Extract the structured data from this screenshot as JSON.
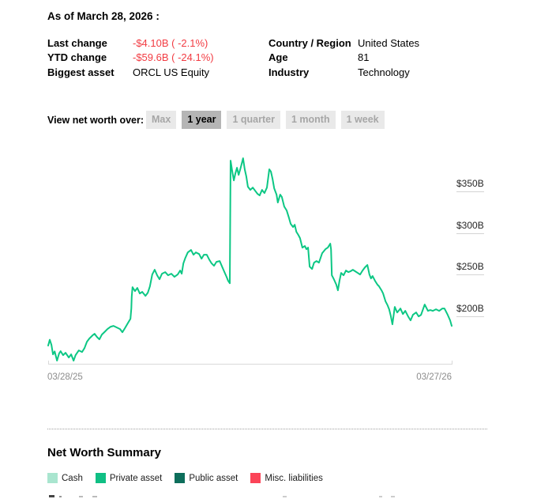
{
  "header": {
    "as_of": "As of March 28, 2026 :"
  },
  "stats": {
    "left": [
      {
        "label": "Last change",
        "value": "-$4.10B ( -2.1%)",
        "negative": true
      },
      {
        "label": "YTD change",
        "value": "-$59.6B ( -24.1%)",
        "negative": true
      },
      {
        "label": "Biggest asset",
        "value": "ORCL US Equity",
        "negative": false
      }
    ],
    "right": [
      {
        "label": "Country / Region",
        "value": "United States"
      },
      {
        "label": "Age",
        "value": "81"
      },
      {
        "label": "Industry",
        "value": "Technology"
      }
    ]
  },
  "controls": {
    "label": "View net worth over:",
    "buttons": [
      {
        "label": "Max",
        "selected": false
      },
      {
        "label": "1 year",
        "selected": true
      },
      {
        "label": "1 quarter",
        "selected": false
      },
      {
        "label": "1 month",
        "selected": false
      },
      {
        "label": "1 week",
        "selected": false
      }
    ]
  },
  "chart_data": {
    "type": "line",
    "title": "Net worth over 1 year",
    "line_color": "#0cc784",
    "y_unit": "billions USD",
    "ylim": [
      145,
      395
    ],
    "grid": false,
    "y_ticks": [
      {
        "value": 350,
        "label": "$350B"
      },
      {
        "value": 300,
        "label": "$300B"
      },
      {
        "value": 250,
        "label": "$250B"
      },
      {
        "value": 200,
        "label": "$200B"
      }
    ],
    "x_axis": {
      "start_label": "03/28/25",
      "end_label": "03/27/26"
    },
    "points": [
      [
        0.0,
        165
      ],
      [
        0.004,
        172
      ],
      [
        0.008,
        166
      ],
      [
        0.012,
        154.5
      ],
      [
        0.016,
        158
      ],
      [
        0.022,
        147
      ],
      [
        0.027,
        155.4
      ],
      [
        0.031,
        158.3
      ],
      [
        0.037,
        153.5
      ],
      [
        0.043,
        156.4
      ],
      [
        0.051,
        150.7
      ],
      [
        0.057,
        154.5
      ],
      [
        0.063,
        146.9
      ],
      [
        0.068,
        153.5
      ],
      [
        0.076,
        159.2
      ],
      [
        0.084,
        157.3
      ],
      [
        0.09,
        162
      ],
      [
        0.096,
        169.6
      ],
      [
        0.102,
        173.4
      ],
      [
        0.11,
        177.2
      ],
      [
        0.115,
        179.1
      ],
      [
        0.121,
        175.3
      ],
      [
        0.127,
        172.5
      ],
      [
        0.133,
        178.2
      ],
      [
        0.141,
        182
      ],
      [
        0.147,
        184.8
      ],
      [
        0.155,
        187.7
      ],
      [
        0.162,
        188.6
      ],
      [
        0.17,
        186.7
      ],
      [
        0.178,
        184.8
      ],
      [
        0.184,
        181
      ],
      [
        0.19,
        185.8
      ],
      [
        0.198,
        192.4
      ],
      [
        0.204,
        197.2
      ],
      [
        0.206,
        209.5
      ],
      [
        0.207,
        223.7
      ],
      [
        0.209,
        235.1
      ],
      [
        0.215,
        230.4
      ],
      [
        0.221,
        234.2
      ],
      [
        0.227,
        227.5
      ],
      [
        0.233,
        229.4
      ],
      [
        0.241,
        224.7
      ],
      [
        0.247,
        228.5
      ],
      [
        0.252,
        236
      ],
      [
        0.258,
        250.3
      ],
      [
        0.264,
        256
      ],
      [
        0.27,
        249.3
      ],
      [
        0.276,
        244.6
      ],
      [
        0.282,
        251.2
      ],
      [
        0.29,
        253.1
      ],
      [
        0.297,
        249.3
      ],
      [
        0.305,
        251.2
      ],
      [
        0.313,
        247.4
      ],
      [
        0.321,
        250.3
      ],
      [
        0.327,
        255
      ],
      [
        0.331,
        251.2
      ],
      [
        0.335,
        263.6
      ],
      [
        0.34,
        270.2
      ],
      [
        0.346,
        276.8
      ],
      [
        0.354,
        279.7
      ],
      [
        0.36,
        274
      ],
      [
        0.366,
        276.8
      ],
      [
        0.374,
        274.9
      ],
      [
        0.38,
        269.3
      ],
      [
        0.386,
        274
      ],
      [
        0.393,
        274
      ],
      [
        0.399,
        268.3
      ],
      [
        0.405,
        263.6
      ],
      [
        0.411,
        260.7
      ],
      [
        0.417,
        265.5
      ],
      [
        0.425,
        266.4
      ],
      [
        0.431,
        259.8
      ],
      [
        0.436,
        254.1
      ],
      [
        0.442,
        247.4
      ],
      [
        0.446,
        242.7
      ],
      [
        0.45,
        239.8
      ],
      [
        0.452,
        386.9
      ],
      [
        0.456,
        374.6
      ],
      [
        0.46,
        363.2
      ],
      [
        0.464,
        371.7
      ],
      [
        0.468,
        378.4
      ],
      [
        0.472,
        369.8
      ],
      [
        0.476,
        376.5
      ],
      [
        0.479,
        382.2
      ],
      [
        0.483,
        389.8
      ],
      [
        0.487,
        376.5
      ],
      [
        0.491,
        367.9
      ],
      [
        0.495,
        355.6
      ],
      [
        0.501,
        351.8
      ],
      [
        0.507,
        354.6
      ],
      [
        0.513,
        350.8
      ],
      [
        0.519,
        347
      ],
      [
        0.524,
        345.2
      ],
      [
        0.53,
        351.8
      ],
      [
        0.536,
        348
      ],
      [
        0.542,
        354.6
      ],
      [
        0.548,
        376.5
      ],
      [
        0.552,
        373.6
      ],
      [
        0.556,
        365.1
      ],
      [
        0.56,
        353.7
      ],
      [
        0.566,
        346.1
      ],
      [
        0.569,
        336.6
      ],
      [
        0.575,
        346.1
      ],
      [
        0.579,
        343.3
      ],
      [
        0.585,
        331.9
      ],
      [
        0.591,
        327.1
      ],
      [
        0.597,
        317.6
      ],
      [
        0.601,
        311
      ],
      [
        0.607,
        307.2
      ],
      [
        0.611,
        310
      ],
      [
        0.615,
        301.5
      ],
      [
        0.62,
        297.7
      ],
      [
        0.624,
        293.9
      ],
      [
        0.63,
        282.5
      ],
      [
        0.636,
        284.4
      ],
      [
        0.64,
        280.6
      ],
      [
        0.644,
        282.5
      ],
      [
        0.648,
        259.8
      ],
      [
        0.654,
        256.9
      ],
      [
        0.659,
        264.5
      ],
      [
        0.665,
        266.4
      ],
      [
        0.671,
        264.5
      ],
      [
        0.679,
        275.9
      ],
      [
        0.687,
        280.6
      ],
      [
        0.693,
        282.5
      ],
      [
        0.699,
        287.3
      ],
      [
        0.701,
        280.6
      ],
      [
        0.703,
        249.3
      ],
      [
        0.708,
        244.6
      ],
      [
        0.714,
        238
      ],
      [
        0.718,
        231.3
      ],
      [
        0.722,
        242.7
      ],
      [
        0.726,
        252.2
      ],
      [
        0.732,
        249.3
      ],
      [
        0.738,
        255
      ],
      [
        0.744,
        253.1
      ],
      [
        0.749,
        254.1
      ],
      [
        0.755,
        256
      ],
      [
        0.761,
        254.1
      ],
      [
        0.767,
        252.2
      ],
      [
        0.773,
        250.3
      ],
      [
        0.779,
        255
      ],
      [
        0.785,
        258.8
      ],
      [
        0.791,
        261.7
      ],
      [
        0.796,
        250.3
      ],
      [
        0.8,
        245.5
      ],
      [
        0.804,
        248.4
      ],
      [
        0.81,
        242.7
      ],
      [
        0.816,
        238
      ],
      [
        0.82,
        236.1
      ],
      [
        0.826,
        231.3
      ],
      [
        0.83,
        227.5
      ],
      [
        0.836,
        218
      ],
      [
        0.841,
        213.3
      ],
      [
        0.845,
        208.5
      ],
      [
        0.849,
        200.9
      ],
      [
        0.853,
        190.5
      ],
      [
        0.859,
        211.4
      ],
      [
        0.865,
        204.7
      ],
      [
        0.873,
        209.5
      ],
      [
        0.879,
        202.8
      ],
      [
        0.885,
        206.6
      ],
      [
        0.892,
        200
      ],
      [
        0.898,
        195.3
      ],
      [
        0.904,
        201.9
      ],
      [
        0.912,
        204.7
      ],
      [
        0.918,
        200
      ],
      [
        0.924,
        201.9
      ],
      [
        0.933,
        214.2
      ],
      [
        0.941,
        206.6
      ],
      [
        0.947,
        207.6
      ],
      [
        0.953,
        206.6
      ],
      [
        0.961,
        208.5
      ],
      [
        0.969,
        206.6
      ],
      [
        0.977,
        209.5
      ],
      [
        0.982,
        209.5
      ],
      [
        0.99,
        201.9
      ],
      [
        0.996,
        195.3
      ],
      [
        1.0,
        188.6
      ]
    ]
  },
  "summary": {
    "title": "Net Worth Summary",
    "legend": [
      {
        "label": "Cash",
        "color": "#a9e5cf"
      },
      {
        "label": "Private asset",
        "color": "#10bf84"
      },
      {
        "label": "Public asset",
        "color": "#0d6e5b"
      },
      {
        "label": "Misc. liabilities",
        "color": "#fb4458"
      }
    ]
  },
  "colors": {
    "negative": "#f23b42",
    "muted": "#8c8c8c"
  }
}
